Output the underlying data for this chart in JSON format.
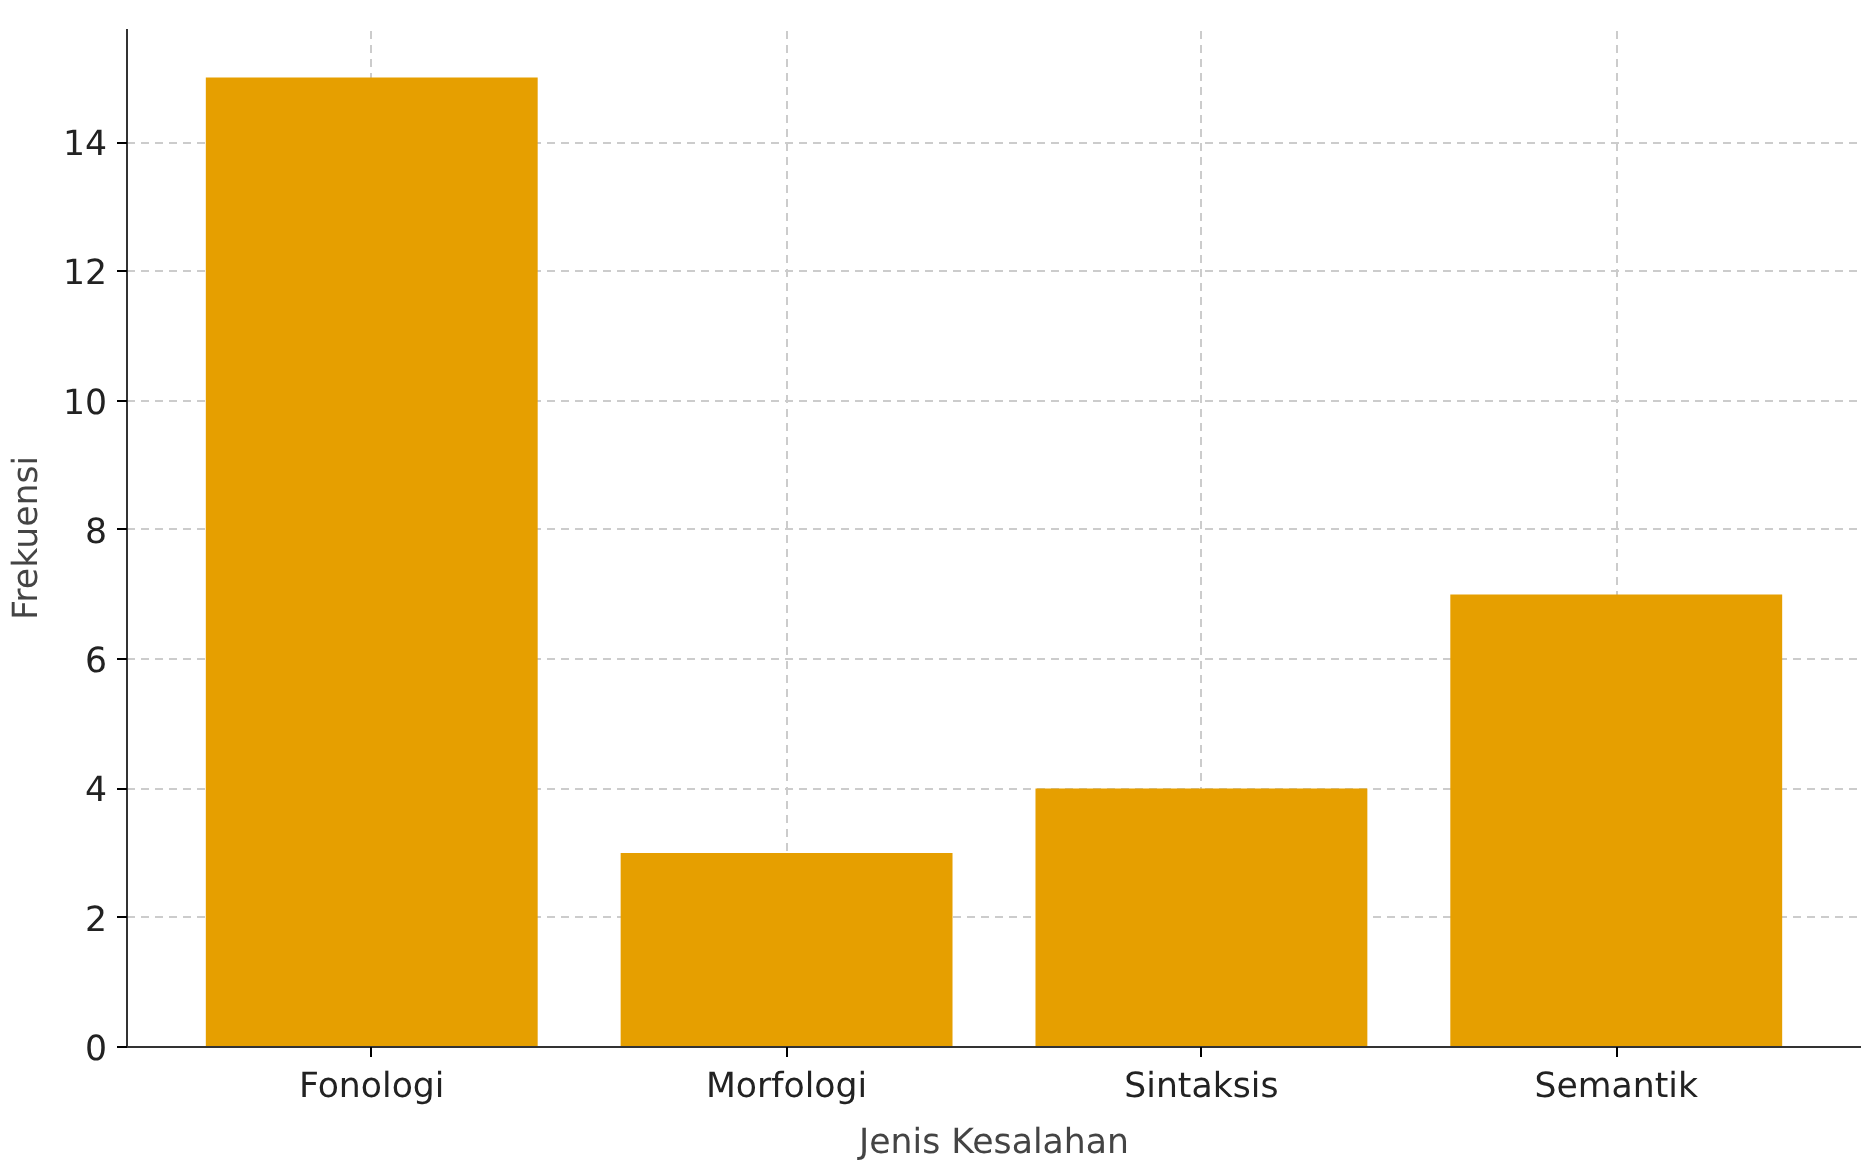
{
  "chart_data": {
    "type": "bar",
    "xlabel": "Jenis Kesalahan",
    "ylabel": "Frekuensi",
    "categories": [
      "Fonologi",
      "Morfologi",
      "Sintaksis",
      "Semantik"
    ],
    "values": [
      15,
      3,
      4,
      7
    ],
    "color": "#e69f00",
    "ylim": [
      0,
      15.75
    ],
    "yticks": [
      0,
      2,
      4,
      6,
      8,
      10,
      12,
      14
    ],
    "grid": true
  }
}
